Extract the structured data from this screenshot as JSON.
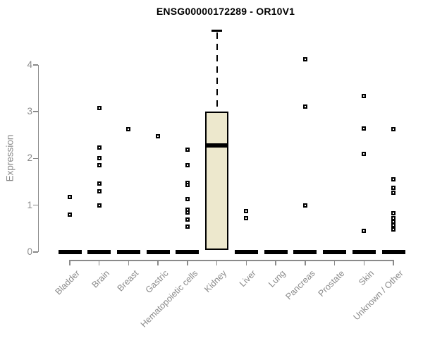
{
  "title": "ENSG00000172289 - OR10V1",
  "colors": {
    "background": "#ffffff",
    "axis": "#8a8a8a",
    "label_gray": "#8a8a8a",
    "title_color": "#000000",
    "box_fill": "#ede8cd",
    "box_stroke": "#000000",
    "marker_stroke": "#000000",
    "marker_fill": "#ffffff"
  },
  "chart_data": {
    "type": "boxplot",
    "title": "ENSG00000172289 - OR10V1",
    "xlabel": "",
    "ylabel": "Expression",
    "ylim": [
      0,
      4.8
    ],
    "yticks": [
      0,
      1,
      2,
      3,
      4
    ],
    "grid": false,
    "legend": false,
    "marker": "open-square",
    "x_tick_rotation": 45,
    "categories": [
      "Bladder",
      "Brain",
      "Breast",
      "Gastric",
      "Hematopoietic cells",
      "Kidney",
      "Liver",
      "Lung",
      "Pancreas",
      "Prostate",
      "Skin",
      "Unknown / Other"
    ],
    "boxes": [
      {
        "category": "Bladder",
        "median": 0,
        "q1": 0,
        "q3": 0,
        "whisker_low": 0,
        "whisker_high": 0,
        "outliers": [
          1.18,
          0.8
        ]
      },
      {
        "category": "Brain",
        "median": 0,
        "q1": 0,
        "q3": 0,
        "whisker_low": 0,
        "whisker_high": 0,
        "outliers": [
          3.07,
          2.23,
          2.0,
          1.85,
          1.46,
          1.3,
          1.0
        ]
      },
      {
        "category": "Breast",
        "median": 0,
        "q1": 0,
        "q3": 0,
        "whisker_low": 0,
        "whisker_high": 0,
        "outliers": [
          2.62
        ]
      },
      {
        "category": "Gastric",
        "median": 0,
        "q1": 0,
        "q3": 0,
        "whisker_low": 0,
        "whisker_high": 0,
        "outliers": [
          2.47
        ]
      },
      {
        "category": "Hematopoietic cells",
        "median": 0,
        "q1": 0,
        "q3": 0,
        "whisker_low": 0,
        "whisker_high": 0,
        "outliers": [
          2.18,
          1.85,
          1.48,
          1.43,
          1.13,
          0.9,
          0.85,
          0.7,
          0.55
        ]
      },
      {
        "category": "Kidney",
        "median": 2.28,
        "q1": 0.05,
        "q3": 3.0,
        "whisker_low": 0.05,
        "whisker_high": 4.73,
        "outliers": []
      },
      {
        "category": "Liver",
        "median": 0,
        "q1": 0,
        "q3": 0,
        "whisker_low": 0,
        "whisker_high": 0,
        "outliers": [
          0.88,
          0.73
        ]
      },
      {
        "category": "Lung",
        "median": 0,
        "q1": 0,
        "q3": 0,
        "whisker_low": 0,
        "whisker_high": 0,
        "outliers": []
      },
      {
        "category": "Pancreas",
        "median": 0,
        "q1": 0,
        "q3": 0,
        "whisker_low": 0,
        "whisker_high": 0,
        "outliers": [
          4.12,
          3.11,
          1.0
        ]
      },
      {
        "category": "Prostate",
        "median": 0,
        "q1": 0,
        "q3": 0,
        "whisker_low": 0,
        "whisker_high": 0,
        "outliers": []
      },
      {
        "category": "Skin",
        "median": 0,
        "q1": 0,
        "q3": 0,
        "whisker_low": 0,
        "whisker_high": 0,
        "outliers": [
          3.34,
          2.64,
          2.09,
          0.45
        ]
      },
      {
        "category": "Unknown / Other",
        "median": 0,
        "q1": 0,
        "q3": 0,
        "whisker_low": 0,
        "whisker_high": 0,
        "outliers": [
          2.63,
          1.55,
          1.38,
          1.27,
          0.83,
          0.73,
          0.65,
          0.57,
          0.49
        ]
      }
    ]
  }
}
